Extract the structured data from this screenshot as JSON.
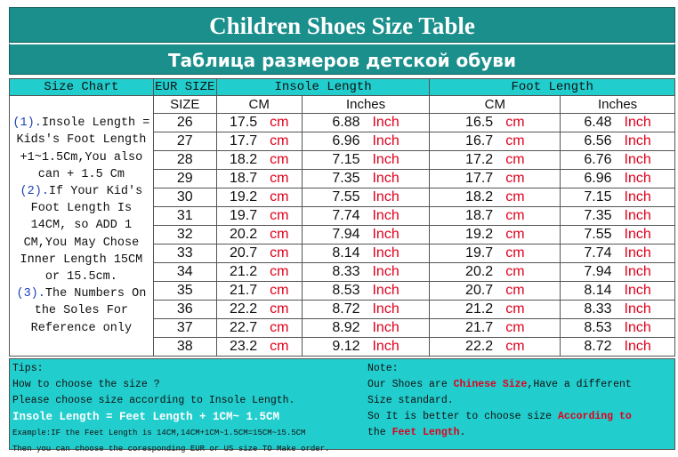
{
  "title": "Children Shoes Size Table",
  "subtitle": "Таблица размеров детской обуви",
  "headers": {
    "size_chart": "Size Chart",
    "eur_size": "EUR SIZE",
    "insole_length": "Insole Length",
    "foot_length": "Foot Length",
    "size": "SIZE",
    "cm": "CM",
    "inches": "Inches"
  },
  "unit_cm": "cm",
  "unit_inch": "Inch",
  "size_chart_notes": {
    "n1_label": "(1).",
    "n1_text": "Insole Length = Kids's Foot Length +1~1.5Cm,You also can + 1.5 Cm",
    "n2_label": "(2).",
    "n2_text": "If Your Kid's Foot Length Is 14CM, so ADD 1 CM,You May Chose Inner Length 15CM or 15.5cm.",
    "n3_label": "(3).",
    "n3_text": "The Numbers On the Soles For Reference only"
  },
  "rows": [
    {
      "size": "26",
      "insole_cm": "17.5",
      "insole_in": "6.88",
      "foot_cm": "16.5",
      "foot_in": "6.48"
    },
    {
      "size": "27",
      "insole_cm": "17.7",
      "insole_in": "6.96",
      "foot_cm": "16.7",
      "foot_in": "6.56"
    },
    {
      "size": "28",
      "insole_cm": "18.2",
      "insole_in": "7.15",
      "foot_cm": "17.2",
      "foot_in": "6.76"
    },
    {
      "size": "29",
      "insole_cm": "18.7",
      "insole_in": "7.35",
      "foot_cm": "17.7",
      "foot_in": "6.96"
    },
    {
      "size": "30",
      "insole_cm": "19.2",
      "insole_in": "7.55",
      "foot_cm": "18.2",
      "foot_in": "7.15"
    },
    {
      "size": "31",
      "insole_cm": "19.7",
      "insole_in": "7.74",
      "foot_cm": "18.7",
      "foot_in": "7.35"
    },
    {
      "size": "32",
      "insole_cm": "20.2",
      "insole_in": "7.94",
      "foot_cm": "19.2",
      "foot_in": "7.55"
    },
    {
      "size": "33",
      "insole_cm": "20.7",
      "insole_in": "8.14",
      "foot_cm": "19.7",
      "foot_in": "7.74"
    },
    {
      "size": "34",
      "insole_cm": "21.2",
      "insole_in": "8.33",
      "foot_cm": "20.2",
      "foot_in": "7.94"
    },
    {
      "size": "35",
      "insole_cm": "21.7",
      "insole_in": "8.53",
      "foot_cm": "20.7",
      "foot_in": "8.14"
    },
    {
      "size": "36",
      "insole_cm": "22.2",
      "insole_in": "8.72",
      "foot_cm": "21.2",
      "foot_in": "8.33"
    },
    {
      "size": "37",
      "insole_cm": "22.7",
      "insole_in": "8.92",
      "foot_cm": "21.7",
      "foot_in": "8.53"
    },
    {
      "size": "38",
      "insole_cm": "23.2",
      "insole_in": "9.12",
      "foot_cm": "22.2",
      "foot_in": "8.72"
    }
  ],
  "tips": {
    "heading": "Tips:",
    "line1": "How to choose the size ?",
    "line2": "Please choose size according to Insole Length.",
    "line3": "Insole Length = Feet Length + 1CM~ 1.5CM",
    "line4": "Example:IF the Feet Length is 14CM,14CM+1CM~1.5CM=15CM~15.5CM",
    "line5": "Then you can choose the coresponding EUR or US size TO Make order."
  },
  "note": {
    "heading": "Note:",
    "l1_a": "Our Shoes are ",
    "l1_b": "Chinese Size",
    "l1_c": ",Have a different",
    "l2": "Size standard.",
    "l3_a": "So It is better to choose size ",
    "l3_b": "According to",
    "l4_a": "the ",
    "l4_b": "Feet Length",
    "l4_c": "."
  },
  "colors": {
    "title_bg": "#1a8f8c",
    "header_bg": "#22cdcd",
    "unit_red": "#e0001b",
    "note_blue": "#1b3fb5"
  }
}
